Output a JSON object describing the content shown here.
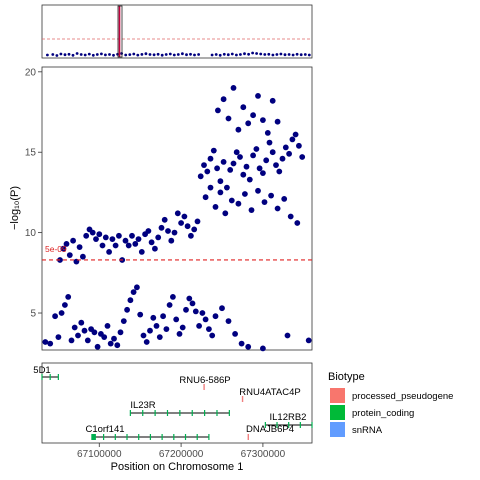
{
  "chart_data": [
    {
      "panel": "overview",
      "type": "scatter",
      "title": "",
      "xlabel": "",
      "ylabel": "",
      "threshold_line": {
        "color": "#e06666",
        "style": "dashed"
      },
      "highlight_color": "#c0003c",
      "points": [
        [
          0.02,
          0.15
        ],
        [
          0.04,
          0.2
        ],
        [
          0.055,
          0.1
        ],
        [
          0.07,
          0.25
        ],
        [
          0.085,
          0.18
        ],
        [
          0.1,
          0.22
        ],
        [
          0.115,
          0.12
        ],
        [
          0.13,
          0.3
        ],
        [
          0.145,
          0.2
        ],
        [
          0.16,
          0.15
        ],
        [
          0.175,
          0.24
        ],
        [
          0.19,
          0.12
        ],
        [
          0.205,
          0.2
        ],
        [
          0.22,
          0.26
        ],
        [
          0.235,
          0.16
        ],
        [
          0.25,
          0.2
        ],
        [
          0.265,
          0.12
        ],
        [
          0.28,
          0.22
        ],
        [
          0.295,
          0.3
        ],
        [
          0.31,
          0.15
        ],
        [
          0.325,
          0.19
        ],
        [
          0.34,
          0.25
        ],
        [
          0.355,
          0.14
        ],
        [
          0.37,
          0.21
        ],
        [
          0.385,
          0.28
        ],
        [
          0.4,
          0.2
        ],
        [
          0.415,
          0.17
        ],
        [
          0.43,
          0.22
        ],
        [
          0.445,
          0.13
        ],
        [
          0.46,
          0.2
        ],
        [
          0.475,
          0.25
        ],
        [
          0.49,
          0.15
        ],
        [
          0.505,
          0.2
        ],
        [
          0.52,
          0.28
        ],
        [
          0.535,
          0.18
        ],
        [
          0.55,
          0.22
        ],
        [
          0.565,
          0.15
        ],
        [
          0.58,
          0.2
        ],
        [
          0.63,
          0.15
        ],
        [
          0.645,
          0.2
        ],
        [
          0.66,
          0.12
        ],
        [
          0.675,
          0.22
        ],
        [
          0.69,
          0.18
        ],
        [
          0.705,
          0.25
        ],
        [
          0.72,
          0.15
        ],
        [
          0.735,
          0.2
        ],
        [
          0.75,
          0.28
        ],
        [
          0.765,
          0.22
        ],
        [
          0.78,
          0.35
        ],
        [
          0.795,
          0.3
        ],
        [
          0.81,
          0.25
        ],
        [
          0.825,
          0.2
        ],
        [
          0.84,
          0.22
        ],
        [
          0.855,
          0.15
        ],
        [
          0.87,
          0.2
        ],
        [
          0.885,
          0.25
        ],
        [
          0.9,
          0.18
        ],
        [
          0.915,
          0.2
        ],
        [
          0.93,
          0.15
        ],
        [
          0.945,
          0.22
        ],
        [
          0.96,
          0.18
        ],
        [
          0.975,
          0.2
        ],
        [
          0.99,
          0.15
        ]
      ]
    },
    {
      "panel": "regional",
      "type": "scatter",
      "title": "",
      "xlabel": "",
      "ylabel": "−log₁₀(P)",
      "ylim": [
        2.7,
        20.3
      ],
      "xlim": [
        67030000,
        67360000
      ],
      "yticks": [
        "5",
        "10",
        "15",
        "20"
      ],
      "threshold": {
        "value": 8.3,
        "label": "5e-09"
      },
      "point_color": "#00007f",
      "points": [
        [
          67034000,
          3.2
        ],
        [
          67040000,
          3.1
        ],
        [
          67046000,
          4.8
        ],
        [
          67050000,
          3.5
        ],
        [
          67054000,
          5.0
        ],
        [
          67058000,
          5.5
        ],
        [
          67062000,
          6.0
        ],
        [
          67066000,
          3.3
        ],
        [
          67070000,
          4.1
        ],
        [
          67074000,
          3.6
        ],
        [
          67078000,
          4.4
        ],
        [
          67082000,
          3.9
        ],
        [
          67086000,
          3.3
        ],
        [
          67090000,
          4.0
        ],
        [
          67094000,
          3.8
        ],
        [
          67098000,
          2.9
        ],
        [
          67102000,
          3.7
        ],
        [
          67106000,
          3.5
        ],
        [
          67110000,
          4.2
        ],
        [
          67114000,
          3.1
        ],
        [
          67118000,
          3.4
        ],
        [
          67122000,
          3.0
        ],
        [
          67126000,
          3.8
        ],
        [
          67130000,
          4.5
        ],
        [
          67134000,
          5.2
        ],
        [
          67138000,
          5.8
        ],
        [
          67142000,
          6.3
        ],
        [
          67146000,
          6.6
        ],
        [
          67150000,
          4.9
        ],
        [
          67154000,
          3.6
        ],
        [
          67158000,
          3.2
        ],
        [
          67162000,
          3.9
        ],
        [
          67166000,
          4.7
        ],
        [
          67170000,
          4.2
        ],
        [
          67174000,
          3.5
        ],
        [
          67178000,
          4.8
        ],
        [
          67182000,
          4.0
        ],
        [
          67186000,
          5.5
        ],
        [
          67190000,
          6.0
        ],
        [
          67194000,
          4.6
        ],
        [
          67198000,
          3.7
        ],
        [
          67202000,
          4.1
        ],
        [
          67206000,
          5.2
        ],
        [
          67210000,
          5.9
        ],
        [
          67214000,
          5.6
        ],
        [
          67218000,
          5.1
        ],
        [
          67222000,
          4.2
        ],
        [
          67226000,
          5.0
        ],
        [
          67230000,
          4.6
        ],
        [
          67234000,
          4.0
        ],
        [
          67238000,
          3.6
        ],
        [
          67242000,
          4.8
        ],
        [
          67250000,
          5.3
        ],
        [
          67258000,
          4.5
        ],
        [
          67266000,
          3.7
        ],
        [
          67274000,
          3.1
        ],
        [
          67282000,
          2.9
        ],
        [
          67300000,
          2.8
        ],
        [
          67330000,
          3.6
        ],
        [
          67356000,
          3.3
        ],
        [
          67052000,
          8.3
        ],
        [
          67056000,
          9.0
        ],
        [
          67060000,
          9.3
        ],
        [
          67064000,
          8.6
        ],
        [
          67068000,
          9.5
        ],
        [
          67072000,
          8.2
        ],
        [
          67076000,
          9.1
        ],
        [
          67080000,
          8.5
        ],
        [
          67084000,
          9.8
        ],
        [
          67088000,
          10.2
        ],
        [
          67092000,
          10.0
        ],
        [
          67096000,
          9.6
        ],
        [
          67100000,
          9.9
        ],
        [
          67104000,
          9.2
        ],
        [
          67108000,
          9.7
        ],
        [
          67112000,
          8.8
        ],
        [
          67116000,
          9.6
        ],
        [
          67120000,
          9.2
        ],
        [
          67124000,
          9.8
        ],
        [
          67128000,
          8.3
        ],
        [
          67132000,
          9.5
        ],
        [
          67136000,
          9.2
        ],
        [
          67140000,
          9.8
        ],
        [
          67144000,
          9.3
        ],
        [
          67148000,
          9.6
        ],
        [
          67152000,
          8.8
        ],
        [
          67156000,
          9.9
        ],
        [
          67160000,
          10.1
        ],
        [
          67164000,
          9.4
        ],
        [
          67168000,
          9.0
        ],
        [
          67172000,
          9.7
        ],
        [
          67176000,
          10.3
        ],
        [
          67180000,
          10.8
        ],
        [
          67184000,
          10.1
        ],
        [
          67188000,
          9.5
        ],
        [
          67192000,
          10.0
        ],
        [
          67196000,
          11.2
        ],
        [
          67200000,
          10.6
        ],
        [
          67204000,
          11.0
        ],
        [
          67208000,
          10.4
        ],
        [
          67212000,
          9.8
        ],
        [
          67216000,
          10.2
        ],
        [
          67220000,
          10.7
        ],
        [
          67224000,
          13.5
        ],
        [
          67228000,
          14.2
        ],
        [
          67232000,
          13.8
        ],
        [
          67236000,
          14.6
        ],
        [
          67240000,
          15.1
        ],
        [
          67244000,
          14.0
        ],
        [
          67248000,
          13.2
        ],
        [
          67252000,
          14.4
        ],
        [
          67256000,
          12.8
        ],
        [
          67260000,
          13.9
        ],
        [
          67264000,
          14.3
        ],
        [
          67268000,
          15.0
        ],
        [
          67272000,
          14.7
        ],
        [
          67276000,
          13.6
        ],
        [
          67280000,
          14.1
        ],
        [
          67284000,
          13.3
        ],
        [
          67288000,
          14.8
        ],
        [
          67292000,
          15.2
        ],
        [
          67296000,
          14.0
        ],
        [
          67300000,
          13.7
        ],
        [
          67304000,
          14.5
        ],
        [
          67308000,
          15.6
        ],
        [
          67312000,
          15.0
        ],
        [
          67316000,
          14.2
        ],
        [
          67320000,
          13.8
        ],
        [
          67324000,
          14.6
        ],
        [
          67328000,
          15.3
        ],
        [
          67332000,
          14.9
        ],
        [
          67336000,
          15.8
        ],
        [
          67340000,
          16.1
        ],
        [
          67344000,
          15.4
        ],
        [
          67348000,
          14.7
        ],
        [
          67245000,
          17.6
        ],
        [
          67252000,
          18.3
        ],
        [
          67258000,
          17.1
        ],
        [
          67264000,
          19.0
        ],
        [
          67270000,
          16.4
        ],
        [
          67276000,
          17.8
        ],
        [
          67282000,
          16.8
        ],
        [
          67288000,
          17.3
        ],
        [
          67294000,
          18.5
        ],
        [
          67300000,
          17.0
        ],
        [
          67306000,
          16.2
        ],
        [
          67312000,
          18.2
        ],
        [
          67318000,
          16.9
        ],
        [
          67230000,
          12.2
        ],
        [
          67236000,
          12.8
        ],
        [
          67242000,
          11.6
        ],
        [
          67248000,
          12.5
        ],
        [
          67254000,
          11.2
        ],
        [
          67262000,
          12.0
        ],
        [
          67270000,
          11.8
        ],
        [
          67278000,
          12.4
        ],
        [
          67286000,
          11.4
        ],
        [
          67294000,
          12.6
        ],
        [
          67302000,
          11.9
        ],
        [
          67310000,
          12.3
        ],
        [
          67318000,
          11.5
        ],
        [
          67326000,
          12.1
        ],
        [
          67334000,
          11.0
        ],
        [
          67342000,
          10.6
        ]
      ]
    },
    {
      "panel": "genes",
      "type": "other",
      "xlabel": "Position on Chromosome 1",
      "xlim": [
        67030000,
        67360000
      ],
      "xticks": [
        "67100000",
        "67200000",
        "67300000"
      ],
      "genes": [
        {
          "name": "5D1",
          "start": 67030000,
          "end": 67050000,
          "row": 0,
          "color": "#00b050",
          "biotype": "protein_coding"
        },
        {
          "name": "RNU6-586P",
          "start": 67228000,
          "end": 67228400,
          "row": 1,
          "color": "#f08080",
          "biotype": "snRNA"
        },
        {
          "name": "RNU4ATAC4P",
          "start": 67275000,
          "end": 67275400,
          "row": 2,
          "color": "#f08080",
          "biotype": "snRNA"
        },
        {
          "name": "IL23R",
          "start": 67138000,
          "end": 67259000,
          "row": 3,
          "color": "#00b050",
          "biotype": "protein_coding"
        },
        {
          "name": "IL12RB2",
          "start": 67303000,
          "end": 67360000,
          "row": 4,
          "color": "#00b050",
          "biotype": "protein_coding"
        },
        {
          "name": "C1orf141",
          "start": 67091000,
          "end": 67234000,
          "row": 5,
          "color": "#00b050",
          "biotype": "protein_coding"
        },
        {
          "name": "DNAJB6P4",
          "start": 67282000,
          "end": 67282400,
          "row": 5,
          "color": "#f08080",
          "biotype": "processed_pseudogene"
        }
      ]
    }
  ],
  "legend": {
    "title": "Biotype",
    "items": [
      {
        "label": "processed_pseudogene",
        "color": "#f8766d"
      },
      {
        "label": "protein_coding",
        "color": "#00ba38"
      },
      {
        "label": "snRNA",
        "color": "#619cff"
      }
    ]
  }
}
